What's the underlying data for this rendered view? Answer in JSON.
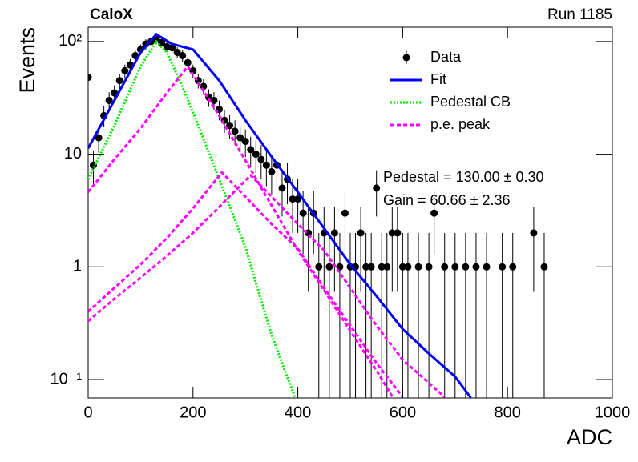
{
  "chart_data": {
    "type": "histogram-fit",
    "title": "CaloX",
    "subtitle": "Run 1185",
    "x_label": "ADC",
    "y_label": "Events",
    "log_y": true,
    "xlim": [
      0,
      1000
    ],
    "ylim": [
      0.0686,
      134
    ],
    "xticks": [
      0,
      200,
      400,
      600,
      800,
      1000
    ],
    "yticks": [
      {
        "value": 0.1,
        "label": "10⁻¹"
      },
      1,
      10,
      {
        "value": 100,
        "label": "10²"
      }
    ],
    "annotations": [
      "Pedestal = 130.00 ± 0.30",
      "Gain = 60.66 ± 2.36"
    ],
    "points": {
      "name": "Data",
      "color": "#000000",
      "x": [
        0,
        10,
        20,
        30,
        40,
        50,
        60,
        70,
        80,
        90,
        100,
        110,
        120,
        130,
        140,
        150,
        160,
        170,
        180,
        190,
        200,
        210,
        220,
        230,
        240,
        250,
        260,
        270,
        280,
        290,
        300,
        310,
        320,
        330,
        340,
        350,
        360,
        370,
        380,
        390,
        400,
        410,
        420,
        430,
        440,
        450,
        460,
        470,
        480,
        490,
        500,
        510,
        520,
        530,
        540,
        550,
        560,
        570,
        580,
        590,
        600,
        610,
        630,
        650,
        660,
        680,
        700,
        720,
        740,
        760,
        790,
        810,
        850,
        870
      ],
      "values": [
        48,
        8,
        14,
        22,
        30,
        35,
        45,
        55,
        62,
        75,
        85,
        95,
        100,
        105,
        98,
        90,
        88,
        80,
        75,
        65,
        55,
        45,
        40,
        32,
        30,
        25,
        20,
        18,
        16,
        14,
        13,
        11,
        10,
        9,
        8,
        7,
        8,
        5,
        6,
        4,
        4,
        3,
        2,
        3,
        1,
        2,
        1,
        2,
        1,
        3,
        1,
        1,
        2,
        1,
        1,
        5,
        1,
        1,
        2,
        2,
        1,
        1,
        1,
        1,
        3,
        1,
        1,
        1,
        1,
        1,
        1,
        1,
        2,
        1
      ],
      "errors": [
        6.9,
        2.8,
        3.7,
        4.7,
        5.5,
        5.9,
        6.7,
        7.4,
        7.9,
        8.7,
        9.2,
        9.7,
        10,
        10.2,
        9.9,
        9.5,
        9.4,
        8.9,
        8.7,
        8.1,
        7.4,
        6.7,
        6.3,
        5.7,
        5.5,
        5,
        4.5,
        4.2,
        4,
        3.7,
        3.6,
        3.3,
        3.2,
        3,
        2.8,
        2.6,
        2.8,
        2.2,
        2.4,
        2,
        2,
        1.7,
        1.4,
        1.7,
        1,
        1.4,
        1,
        1.4,
        1,
        1.7,
        1,
        1,
        1.4,
        1,
        1,
        2.2,
        1,
        1,
        1.4,
        1.4,
        1,
        1,
        1,
        1,
        1.7,
        1,
        1,
        1,
        1,
        1,
        1,
        1,
        1.4,
        1
      ]
    },
    "series": [
      {
        "name": "Fit",
        "color": "#0000ff",
        "style": "solid",
        "lines": [
          {
            "x": [
              0,
              50,
              100,
              130,
              160,
              200,
              250,
              300,
              350,
              400,
              450,
              500,
              550,
              600,
              650,
              700,
              730
            ],
            "values": [
              11.3,
              30,
              80,
              116,
              95,
              85,
              45,
              20,
              9.5,
              4.6,
              2.2,
              1.05,
              0.55,
              0.28,
              0.17,
              0.106,
              0.069
            ]
          }
        ]
      },
      {
        "name": "Pedestal CB",
        "color": "#00ee00",
        "style": "dotted",
        "lines": [
          {
            "x": [
              0,
              50,
              100,
              130,
              150,
              175,
              200,
              225,
              250,
              275,
              300,
              325,
              350,
              375,
              400
            ],
            "values": [
              6,
              18,
              60,
              100,
              80,
              45,
              23.5,
              12,
              6,
              3,
              1.5,
              0.6,
              0.25,
              0.12,
              0.06
            ]
          }
        ]
      },
      {
        "name": "p.e. peak",
        "color": "#ff00ff",
        "style": "dashed",
        "lines": [
          {
            "x": [
              0,
              50,
              100,
              150,
              190,
              250,
              300,
              350,
              400,
              450,
              500,
              550,
              600
            ],
            "values": [
              4.6,
              9,
              17,
              35,
              60,
              22,
              8.8,
              3.5,
              1.4,
              0.62,
              0.27,
              0.12,
              0.05
            ]
          },
          {
            "x": [
              0,
              50,
              100,
              150,
              200,
              255,
              300,
              350,
              400,
              450,
              500,
              550,
              600
            ],
            "values": [
              0.4,
              0.65,
              1.05,
              1.8,
              3.3,
              6.9,
              4.2,
              2.4,
              1.45,
              0.65,
              0.3,
              0.14,
              0.07
            ]
          },
          {
            "x": [
              0,
              50,
              100,
              150,
              200,
              250,
              310,
              350,
              400,
              450,
              500,
              550,
              600,
              680
            ],
            "values": [
              0.33,
              0.52,
              0.8,
              1.25,
              2,
              3.4,
              6.5,
              4.2,
              2.4,
              1.4,
              0.65,
              0.3,
              0.15,
              0.07
            ]
          }
        ]
      }
    ]
  }
}
